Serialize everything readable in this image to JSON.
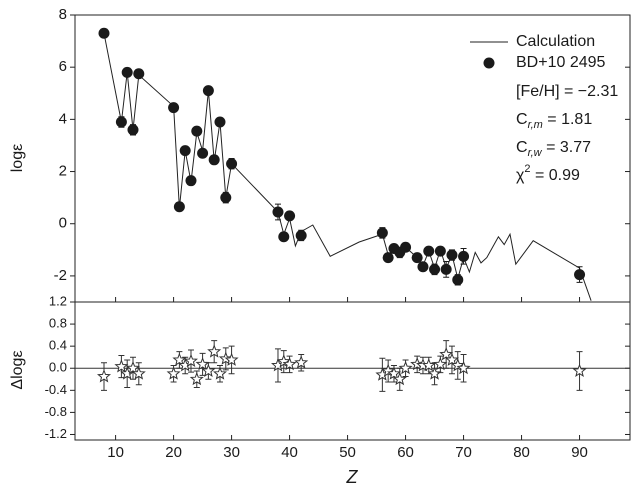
{
  "chart_data": [
    {
      "type": "scatter",
      "y_label": "logε",
      "xlim": [
        3,
        98.7
      ],
      "ylim": [
        -3,
        8
      ],
      "yticks": [
        -2,
        0,
        2,
        4,
        6,
        8
      ],
      "series": [
        {
          "name": "Calculation",
          "kind": "line",
          "color": "#222222",
          "x": [
            8,
            11,
            12,
            13,
            14,
            20,
            21,
            22,
            23,
            24,
            25,
            26,
            27,
            28,
            29,
            30,
            38,
            39,
            40,
            41,
            42,
            44,
            47,
            52,
            56,
            57,
            58,
            59,
            60,
            62,
            63,
            64,
            65,
            66,
            67,
            68,
            69,
            70,
            71,
            72,
            73,
            74,
            76,
            77,
            78,
            79,
            82,
            90,
            92
          ],
          "values": [
            7.3,
            3.9,
            5.8,
            3.6,
            5.7,
            4.5,
            0.6,
            2.8,
            1.6,
            3.5,
            2.8,
            5.1,
            2.4,
            3.9,
            1.0,
            2.3,
            0.45,
            -0.4,
            0.2,
            -0.85,
            -0.3,
            -0.05,
            -1.25,
            -0.7,
            -0.4,
            -1.2,
            -0.95,
            -1.1,
            -0.9,
            -1.3,
            -1.6,
            -1.05,
            -1.7,
            -1.0,
            -1.7,
            -1.2,
            -2.1,
            -1.3,
            -1.85,
            -1.1,
            -1.5,
            -1.3,
            -0.5,
            -0.8,
            -0.4,
            -1.55,
            -0.65,
            -1.7,
            -2.95
          ]
        },
        {
          "name": "BD+10 2495",
          "kind": "points",
          "color": "#1a1a1a",
          "x": [
            8,
            11,
            12,
            13,
            14,
            20,
            21,
            22,
            23,
            24,
            25,
            26,
            27,
            28,
            29,
            30,
            38,
            39,
            40,
            42,
            56,
            57,
            58,
            59,
            60,
            62,
            63,
            64,
            65,
            66,
            67,
            68,
            69,
            70,
            90
          ],
          "values": [
            7.3,
            3.9,
            5.8,
            3.6,
            5.75,
            4.45,
            0.65,
            2.8,
            1.65,
            3.55,
            2.7,
            5.1,
            2.45,
            3.9,
            1.0,
            2.3,
            0.45,
            -0.5,
            0.3,
            -0.45,
            -0.35,
            -1.3,
            -0.95,
            -1.1,
            -0.9,
            -1.3,
            -1.65,
            -1.05,
            -1.75,
            -1.05,
            -1.75,
            -1.2,
            -2.15,
            -1.25,
            -1.95
          ],
          "errors": [
            0.1,
            0.2,
            0.1,
            0.2,
            0.1,
            0.1,
            0.1,
            0.1,
            0.15,
            0.1,
            0.15,
            0.1,
            0.1,
            0.1,
            0.2,
            0.2,
            0.3,
            0.1,
            0.1,
            0.2,
            0.2,
            0.1,
            0.1,
            0.2,
            0.1,
            0.1,
            0.1,
            0.1,
            0.2,
            0.1,
            0.3,
            0.2,
            0.2,
            0.3,
            0.3
          ]
        }
      ],
      "annotations": [
        {
          "base": "[Fe/H] = −2.31"
        },
        {
          "base": "C",
          "sub": "r,m",
          "rest": " = 1.81"
        },
        {
          "base": "C",
          "sub": "r,w",
          "rest": " = 3.77"
        },
        {
          "base": "χ",
          "sup": "2",
          "rest": " = 0.99"
        }
      ]
    },
    {
      "type": "scatter",
      "x_label": "Z",
      "y_label": "Δlogε",
      "xlim": [
        3,
        98.7
      ],
      "ylim": [
        -1.3,
        1.2
      ],
      "xticks": [
        10,
        20,
        30,
        40,
        50,
        60,
        70,
        80,
        90
      ],
      "yticks": [
        -1.2,
        -0.8,
        -0.4,
        {
          "value": 0,
          "label": "0.0"
        },
        0.4,
        0.8,
        1.2
      ],
      "reference_line": 0,
      "series": [
        {
          "kind": "stars",
          "color": "#333333",
          "x": [
            8,
            11,
            12,
            13,
            14,
            20,
            21,
            22,
            23,
            24,
            25,
            26,
            27,
            28,
            29,
            30,
            38,
            39,
            40,
            42,
            56,
            57,
            58,
            59,
            60,
            62,
            63,
            64,
            65,
            66,
            67,
            68,
            69,
            70,
            90
          ],
          "values": [
            -0.15,
            0.03,
            -0.1,
            0.0,
            -0.1,
            -0.1,
            0.15,
            0.05,
            0.13,
            -0.2,
            0.07,
            -0.05,
            0.3,
            -0.1,
            0.17,
            0.15,
            0.05,
            0.12,
            0.07,
            0.1,
            -0.12,
            -0.05,
            -0.1,
            -0.2,
            0.0,
            0.07,
            0.05,
            0.05,
            -0.1,
            0.07,
            0.25,
            0.15,
            0.05,
            0.0,
            -0.05
          ],
          "errors": [
            0.25,
            0.2,
            0.25,
            0.2,
            0.2,
            0.15,
            0.15,
            0.15,
            0.2,
            0.15,
            0.2,
            0.15,
            0.2,
            0.15,
            0.2,
            0.25,
            0.3,
            0.2,
            0.15,
            0.15,
            0.3,
            0.2,
            0.15,
            0.2,
            0.15,
            0.15,
            0.15,
            0.15,
            0.2,
            0.15,
            0.25,
            0.25,
            0.25,
            0.25,
            0.35
          ]
        }
      ]
    }
  ]
}
